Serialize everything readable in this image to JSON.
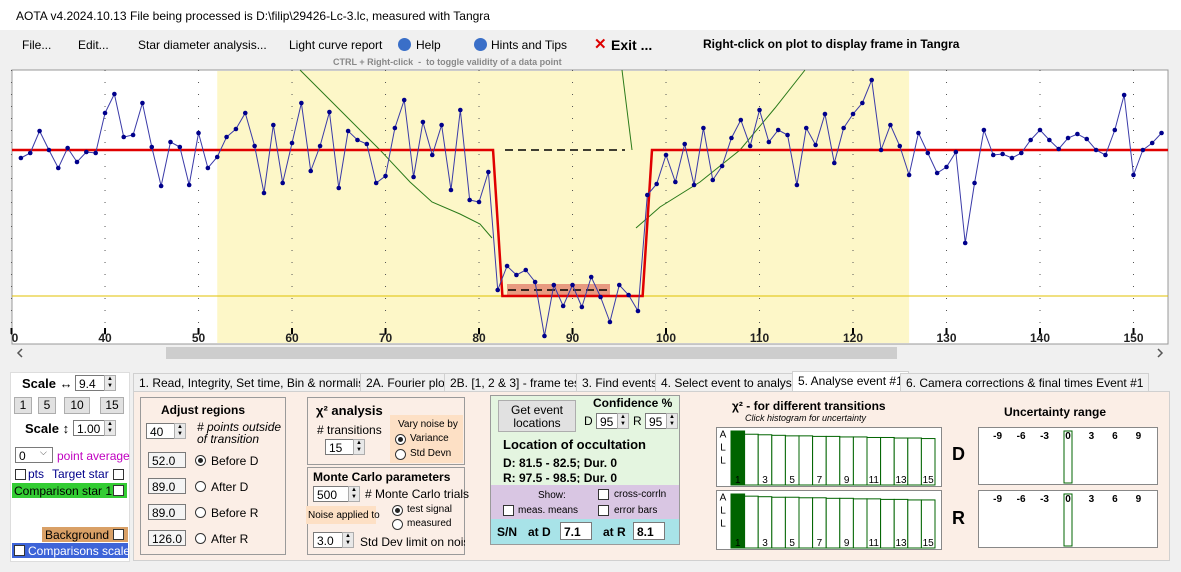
{
  "title_bar": {
    "app": "AOTA v4.2024.10.13",
    "file": "File being processed is D:\\filip\\29426-Lc-3.lc, measured with Tangra"
  },
  "menu": {
    "items": [
      "File...",
      "Edit...",
      "Star diameter analysis...",
      "Light curve report",
      "Help",
      "Hints and Tips",
      "Exit ..."
    ],
    "hint": "Right-click on plot to display frame in Tangra"
  },
  "plot_hint": "CTRL + Right-click  -  to toggle validity of a data point",
  "chart_data": {
    "type": "line",
    "color": "#00008b",
    "line_color": "#3a3aa8",
    "x": [
      31,
      32,
      33,
      34,
      35,
      36,
      37,
      38,
      39,
      40,
      41,
      42,
      43,
      44,
      45,
      46,
      47,
      48,
      49,
      50,
      51,
      52,
      53,
      54,
      55,
      56,
      57,
      58,
      59,
      60,
      61,
      62,
      63,
      64,
      65,
      66,
      67,
      68,
      69,
      70,
      71,
      72,
      73,
      74,
      75,
      76,
      77,
      78,
      79,
      80,
      81,
      82,
      83,
      84,
      85,
      86,
      87,
      88,
      89,
      90,
      91,
      92,
      93,
      94,
      95,
      96,
      97,
      98,
      99,
      100,
      101,
      102,
      103,
      104,
      105,
      106,
      107,
      108,
      109,
      110,
      111,
      112,
      113,
      114,
      115,
      116,
      117,
      118,
      119,
      120,
      121,
      122,
      123,
      124,
      125,
      126,
      127,
      128,
      129,
      130,
      131,
      132,
      133,
      134,
      135,
      136,
      137,
      138,
      139,
      140,
      141,
      142,
      143,
      144,
      145,
      146,
      147,
      148,
      149,
      150,
      151,
      152,
      153
    ],
    "values": [
      138,
      143,
      165,
      146,
      128,
      148,
      134,
      144,
      143,
      183,
      202,
      159,
      161,
      193,
      149,
      110,
      154,
      149,
      111,
      163,
      128,
      139,
      159,
      167,
      183,
      150,
      103,
      171,
      113,
      153,
      193,
      125,
      150,
      184,
      108,
      165,
      156,
      152,
      113,
      120,
      168,
      196,
      119,
      174,
      141,
      171,
      106,
      186,
      96,
      94,
      124,
      6,
      30,
      21,
      26,
      14,
      -40,
      11,
      -10,
      11,
      -11,
      19,
      -1,
      -26,
      11,
      1,
      -15,
      101,
      112,
      141,
      114,
      152,
      111,
      168,
      116,
      130,
      158,
      176,
      150,
      186,
      154,
      166,
      161,
      111,
      168,
      151,
      182,
      133,
      168,
      182,
      193,
      216,
      146,
      171,
      150,
      121,
      163,
      143,
      123,
      129,
      144,
      53,
      113,
      166,
      141,
      142,
      138,
      143,
      156,
      166,
      156,
      147,
      158,
      162,
      157,
      146,
      141,
      166,
      201,
      121,
      146,
      153,
      163
    ],
    "model": {
      "color": "#e00000",
      "x": [
        30.05,
        81.5,
        82.5,
        97.5,
        98.5,
        153.69
      ],
      "values": [
        146,
        146,
        0,
        0,
        146,
        146
      ]
    },
    "xlim": [
      30.05,
      153.69
    ],
    "ylim": [
      -48,
      226
    ],
    "xticks": [
      {
        "value": 30,
        "label": "0"
      },
      40,
      50,
      60,
      70,
      80,
      90,
      100,
      110,
      120,
      130,
      140,
      150
    ],
    "grid": true
  },
  "left_panel": {
    "scale_x_label": "Scale ↔",
    "scale_x": "9.4",
    "scale_buttons": [
      "1",
      "5",
      "10",
      "15"
    ],
    "scale_y_label": "Scale ↕",
    "scale_y": "1.00",
    "average": "0",
    "average_label": "point average",
    "points_label": "pts",
    "target": "Target star",
    "comparison": "Comparison star 1",
    "background": "Background",
    "comparisons_scaled": "Comparisons scaled"
  },
  "tabs": {
    "items": [
      "1. Read, Integrity, Set time, Bin & normalise",
      "2A. Fourier plot",
      "2B. [1, 2 & 3] - frame test",
      "3. Find events",
      "4. Select event to analyse",
      "5. Analyse event #1",
      "6. Camera corrections & final times Event #1"
    ],
    "active": 5
  },
  "adjust_regions": {
    "title": "Adjust regions",
    "points": "40",
    "points_label": "# points outside of transition",
    "rows": [
      {
        "value": "52.0",
        "label": "Before D"
      },
      {
        "value": "89.0",
        "label": "After D"
      },
      {
        "value": "89.0",
        "label": "Before R"
      },
      {
        "value": "126.0",
        "label": "After R"
      }
    ],
    "selected": 0
  },
  "chi2_analysis": {
    "title": "χ² analysis",
    "transitions_label": "# transitions",
    "transitions": "15",
    "vary_label": "Vary noise by",
    "options": [
      "Variance",
      "Std Devn"
    ],
    "selected": 0
  },
  "monte_carlo": {
    "title": "Monte Carlo parameters",
    "trials": "500",
    "trials_label": "# Monte Carlo trials",
    "noise_label": "Noise applied to",
    "options": [
      "test signal",
      "measured"
    ],
    "selected": 0,
    "limit": "3.0",
    "limit_label": "Std Dev limit on noise"
  },
  "event": {
    "button": "Get event locations",
    "confidence_label": "Confidence %",
    "d_label": "D",
    "d_conf": "95",
    "r_label": "R",
    "r_conf": "95",
    "location_title": "Location of occultation",
    "d_location": "D: 81.5 - 82.5; Dur. 0",
    "r_location": "R: 97.5 - 98.5; Dur. 0",
    "show_label": "Show:",
    "show_options": [
      "cross-corrln",
      "meas. means",
      "error bars"
    ],
    "sn_label": "S/N",
    "sn_d_label": "at D",
    "sn_d": "7.1",
    "sn_r_label": "at R",
    "sn_r": "8.1"
  },
  "chi2_histograms": {
    "title": "χ² - for different transitions",
    "hint": "Click histogram for uncertainty",
    "charts": [
      {
        "type": "bar",
        "name": "D",
        "axis_label": "ALL",
        "color": "#006400",
        "values": [
          100,
          94,
          93,
          92,
          91,
          91,
          90,
          90,
          89,
          89,
          88,
          88,
          87,
          87,
          86
        ],
        "ylim": [
          0,
          100
        ],
        "xticks": [
          1,
          3,
          5,
          7,
          9,
          11,
          13,
          15
        ]
      },
      {
        "type": "bar",
        "name": "R",
        "axis_label": "ALL",
        "color": "#006400",
        "values": [
          100,
          96,
          95,
          94,
          94,
          93,
          93,
          92,
          92,
          91,
          91,
          90,
          90,
          89,
          89
        ],
        "ylim": [
          0,
          100
        ],
        "xticks": [
          1,
          3,
          5,
          7,
          9,
          11,
          13,
          15
        ]
      }
    ]
  },
  "uncertainty": {
    "title": "Uncertainty range",
    "charts": [
      {
        "type": "bar",
        "x": [
          0
        ],
        "values": [
          100
        ],
        "ylim": [
          0,
          100
        ],
        "xlim": [
          -11,
          11
        ],
        "xticks": [
          -9,
          -6,
          -3,
          0,
          3,
          6,
          9
        ],
        "color": "#006400"
      },
      {
        "type": "bar",
        "x": [
          0
        ],
        "values": [
          100
        ],
        "ylim": [
          0,
          100
        ],
        "xlim": [
          -11,
          11
        ],
        "xticks": [
          -9,
          -6,
          -3,
          0,
          3,
          6,
          9
        ],
        "color": "#006400"
      }
    ]
  }
}
